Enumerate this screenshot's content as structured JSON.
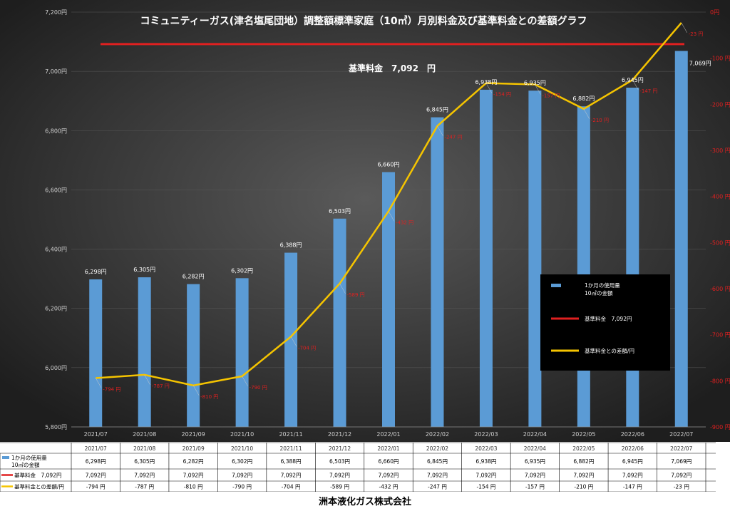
{
  "company": "洲本液化ガス株式会社",
  "colors": {
    "bar": "#5b9bd5",
    "base_line": "#e02020",
    "diff_line": "#f5c400",
    "diff_label": "#e02020",
    "axis_text": "#d0d0d0"
  },
  "chart_data": {
    "type": "bar",
    "title": "コミュニティーガス(津名塩尾団地）調整額標準家庭（10㎥）月別料金及び基準料金との差額グラフ",
    "base_label": "基準料金　7,092　円",
    "categories": [
      "2021/07",
      "2021/08",
      "2021/09",
      "2021/10",
      "2021/11",
      "2021/12",
      "2022/01",
      "2022/02",
      "2022/03",
      "2022/04",
      "2022/05",
      "2022/06",
      "2022/07"
    ],
    "series": [
      {
        "name": "1か月の使用量10㎥の金額",
        "type": "bar",
        "values": [
          6298,
          6305,
          6282,
          6302,
          6388,
          6503,
          6660,
          6845,
          6938,
          6935,
          6882,
          6945,
          7069
        ],
        "labels": [
          "6,298円",
          "6,305円",
          "6,282円",
          "6,302円",
          "6,388円",
          "6,503円",
          "6,660円",
          "6,845円",
          "6,938円",
          "6,935円",
          "6,882円",
          "6,945円",
          "7,069円"
        ]
      },
      {
        "name": "基準料金　7,092円",
        "type": "line",
        "values": [
          7092,
          7092,
          7092,
          7092,
          7092,
          7092,
          7092,
          7092,
          7092,
          7092,
          7092,
          7092,
          7092
        ]
      },
      {
        "name": "基準料金との差額/円",
        "type": "line",
        "axis": "right",
        "values": [
          -794,
          -787,
          -810,
          -790,
          -704,
          -589,
          -432,
          -247,
          -154,
          -157,
          -210,
          -147,
          -23
        ],
        "labels": [
          "-794 円",
          "-787 円",
          "-810 円",
          "-790 円",
          "-704 円",
          "-589 円",
          "-432 円",
          "-247 円",
          "-154 円",
          "-157 円",
          "-210 円",
          "-147 円",
          "-23 円"
        ]
      }
    ],
    "y_left": {
      "min": 5800,
      "max": 7200,
      "step": 200,
      "ticks": [
        "5,800円",
        "6,000円",
        "6,200円",
        "6,400円",
        "6,600円",
        "6,800円",
        "7,000円",
        "7,200円"
      ]
    },
    "y_right": {
      "min": -900,
      "max": 0,
      "step": 100,
      "ticks": [
        "-900 円",
        "-800 円",
        "-700 円",
        "-600 円",
        "-500 円",
        "-400 円",
        "-300 円",
        "-200 円",
        "-100 円",
        "0円"
      ]
    },
    "legend": {
      "placement": "right",
      "items": [
        {
          "line1": "1か月の使用量",
          "line2": "10㎥の金額"
        },
        {
          "line1": "基準料金　7,092円",
          "line2": ""
        },
        {
          "line1": "基準料金との差額/円",
          "line2": ""
        }
      ]
    },
    "table": {
      "row_labels": [
        {
          "line1": "1か月の使用量",
          "line2": "10㎥の金額"
        },
        {
          "line1": "基準料金　7,092円",
          "line2": ""
        },
        {
          "line1": "基準料金との差額/円",
          "line2": ""
        }
      ],
      "rows": [
        [
          "6,298円",
          "6,305円",
          "6,282円",
          "6,302円",
          "6,388円",
          "6,503円",
          "6,660円",
          "6,845円",
          "6,938円",
          "6,935円",
          "6,882円",
          "6,945円",
          "7,069円"
        ],
        [
          "7,092円",
          "7,092円",
          "7,092円",
          "7,092円",
          "7,092円",
          "7,092円",
          "7,092円",
          "7,092円",
          "7,092円",
          "7,092円",
          "7,092円",
          "7,092円",
          "7,092円"
        ],
        [
          "-794 円",
          "-787 円",
          "-810 円",
          "-790 円",
          "-704 円",
          "-589 円",
          "-432 円",
          "-247 円",
          "-154 円",
          "-157 円",
          "-210 円",
          "-147 円",
          "-23 円"
        ]
      ]
    }
  }
}
